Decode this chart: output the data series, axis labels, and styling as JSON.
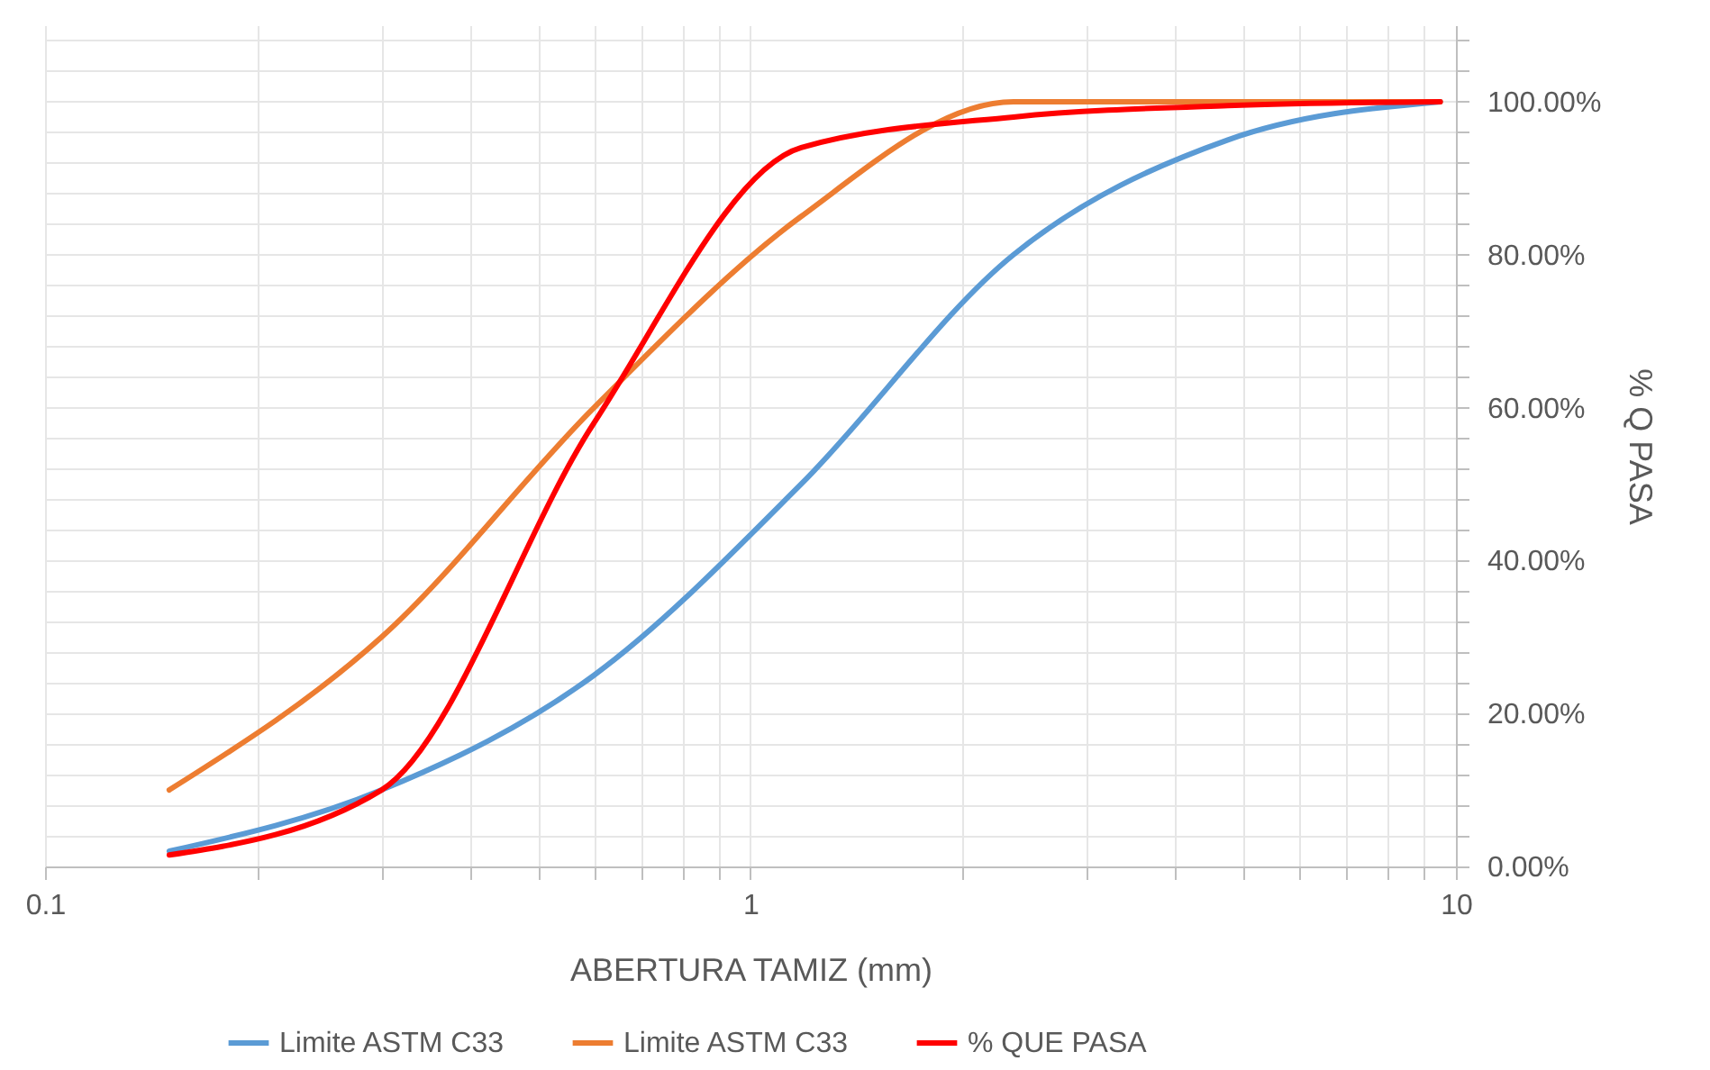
{
  "chart_data": {
    "type": "line",
    "xlabel": "ABERTURA TAMIZ (mm)",
    "ylabel": "% Q PASA",
    "log": "x",
    "grid": true,
    "legend": "bottom",
    "line_style": "solid",
    "marker": "none",
    "x": [
      0.15,
      0.3,
      0.6,
      1.18,
      2.36,
      4.75,
      9.5
    ],
    "series": [
      {
        "name": "Limite ASTM C33",
        "color": "#5b9bd5",
        "values": [
          2,
          10,
          25,
          50,
          80,
          95,
          100
        ]
      },
      {
        "name": "Limite ASTM C33",
        "color": "#ed7d31",
        "values": [
          10,
          30,
          60,
          85,
          100,
          100,
          100
        ]
      },
      {
        "name": "% QUE PASA",
        "color": "#ff0000",
        "values": [
          1.5,
          10,
          58,
          94,
          98,
          99.5,
          100
        ]
      }
    ],
    "xlim": [
      0.1,
      10
    ],
    "xticks": [
      0.1,
      {
        "value": 0.2,
        "label": null
      },
      {
        "value": 0.3,
        "label": null
      },
      {
        "value": 0.4,
        "label": null
      },
      {
        "value": 0.5,
        "label": null
      },
      {
        "value": 0.6,
        "label": null
      },
      {
        "value": 0.7,
        "label": null
      },
      {
        "value": 0.8,
        "label": null
      },
      {
        "value": 0.9,
        "label": null
      },
      1,
      {
        "value": 2,
        "label": null
      },
      {
        "value": 3,
        "label": null
      },
      {
        "value": 4,
        "label": null
      },
      {
        "value": 5,
        "label": null
      },
      {
        "value": 6,
        "label": null
      },
      {
        "value": 7,
        "label": null
      },
      {
        "value": 8,
        "label": null
      },
      {
        "value": 9,
        "label": null
      },
      10
    ],
    "ylim": [
      0,
      110
    ],
    "yticks": [
      {
        "value": 0,
        "label": "0.00%"
      },
      {
        "value": 4,
        "label": null
      },
      {
        "value": 8,
        "label": null
      },
      {
        "value": 12,
        "label": null
      },
      {
        "value": 16,
        "label": null
      },
      {
        "value": 20,
        "label": "20.00%"
      },
      {
        "value": 24,
        "label": null
      },
      {
        "value": 28,
        "label": null
      },
      {
        "value": 32,
        "label": null
      },
      {
        "value": 36,
        "label": null
      },
      {
        "value": 40,
        "label": "40.00%"
      },
      {
        "value": 44,
        "label": null
      },
      {
        "value": 48,
        "label": null
      },
      {
        "value": 52,
        "label": null
      },
      {
        "value": 56,
        "label": null
      },
      {
        "value": 60,
        "label": "60.00%"
      },
      {
        "value": 64,
        "label": null
      },
      {
        "value": 68,
        "label": null
      },
      {
        "value": 72,
        "label": null
      },
      {
        "value": 76,
        "label": null
      },
      {
        "value": 80,
        "label": "80.00%"
      },
      {
        "value": 84,
        "label": null
      },
      {
        "value": 88,
        "label": null
      },
      {
        "value": 92,
        "label": null
      },
      {
        "value": 96,
        "label": null
      },
      {
        "value": 100,
        "label": "100.00%"
      },
      {
        "value": 104,
        "label": null
      },
      {
        "value": 108,
        "label": null
      }
    ]
  }
}
